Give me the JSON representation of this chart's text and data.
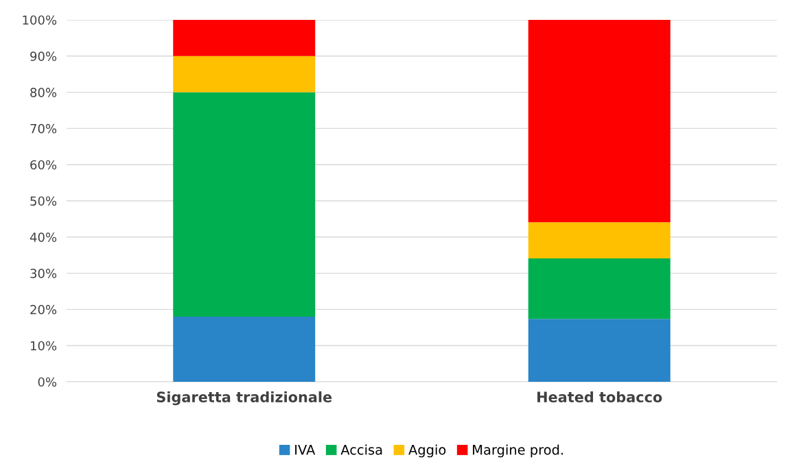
{
  "chart_data": {
    "type": "bar",
    "stacked": true,
    "categories": [
      "Sigaretta tradizionale",
      "Heated tobacco"
    ],
    "series": [
      {
        "name": "IVA",
        "color": "#2a84c8",
        "values": [
          18,
          17.4
        ]
      },
      {
        "name": "Accisa",
        "color": "#00b050",
        "values": [
          62,
          16.7
        ]
      },
      {
        "name": "Aggio",
        "color": "#ffc000",
        "values": [
          10,
          10
        ]
      },
      {
        "name": "Margine prod.",
        "color": "#ff0000",
        "values": [
          10,
          55.9
        ]
      }
    ],
    "ylim": [
      0,
      100
    ],
    "yticks": [
      {
        "value": 0,
        "label": "0%"
      },
      {
        "value": 10,
        "label": "10%"
      },
      {
        "value": 20,
        "label": "20%"
      },
      {
        "value": 30,
        "label": "30%"
      },
      {
        "value": 40,
        "label": "40%"
      },
      {
        "value": 50,
        "label": "50%"
      },
      {
        "value": 60,
        "label": "60%"
      },
      {
        "value": 70,
        "label": "70%"
      },
      {
        "value": 80,
        "label": "80%"
      },
      {
        "value": 90,
        "label": "90%"
      },
      {
        "value": 100,
        "label": "100%"
      }
    ],
    "grid": "y",
    "legend": "bottom"
  }
}
